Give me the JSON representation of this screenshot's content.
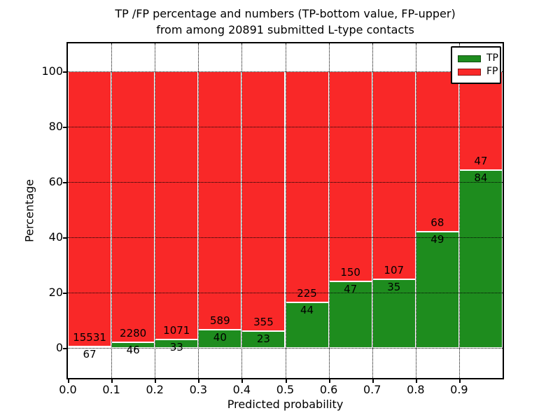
{
  "title": {
    "line1": "TP /FP percentage and numbers (TP-bottom value, FP-upper)",
    "line2": "from among 20891 submitted L-type contacts"
  },
  "axes": {
    "ylabel": "Percentage",
    "xlabel": "Predicted probability",
    "yticks": [
      0,
      20,
      40,
      60,
      80,
      100
    ],
    "xtick_labels": [
      "0.0",
      "0.1",
      "0.2",
      "0.3",
      "0.4",
      "0.5",
      "0.6",
      "0.7",
      "0.8",
      "0.9"
    ],
    "ylim": [
      -11,
      110
    ],
    "xlim": [
      0.0,
      1.0
    ],
    "grid": "dotted"
  },
  "legend": {
    "position": "upper right",
    "items": [
      {
        "label": "TP",
        "color": "#1e8c1e"
      },
      {
        "label": "FP",
        "color": "#f92828"
      }
    ]
  },
  "colors": {
    "tp": "#1e8c1e",
    "fp": "#f92828",
    "grid": "#000000",
    "text": "#000000",
    "background": "#ffffff"
  },
  "chart_data": {
    "type": "bar",
    "stacked": true,
    "normalized_to_100_percent": true,
    "title": "TP /FP percentage and numbers (TP-bottom value, FP-upper) from among 20891 submitted L-type contacts",
    "xlabel": "Predicted probability",
    "ylabel": "Percentage",
    "total_contacts": 20891,
    "bin_width": 0.1,
    "categories": [
      "0.0",
      "0.1",
      "0.2",
      "0.3",
      "0.4",
      "0.5",
      "0.6",
      "0.7",
      "0.8",
      "0.9"
    ],
    "series": [
      {
        "name": "TP",
        "role": "bottom",
        "values": [
          67,
          46,
          33,
          40,
          23,
          44,
          47,
          35,
          49,
          84
        ]
      },
      {
        "name": "FP",
        "role": "upper",
        "values": [
          15531,
          2280,
          1071,
          589,
          355,
          225,
          150,
          107,
          68,
          47
        ]
      }
    ],
    "tp_percent_of_bin": [
      0.43,
      1.98,
      2.99,
      6.36,
      6.08,
      16.36,
      23.86,
      24.65,
      41.88,
      64.12
    ],
    "ylim": [
      -11,
      110
    ]
  }
}
